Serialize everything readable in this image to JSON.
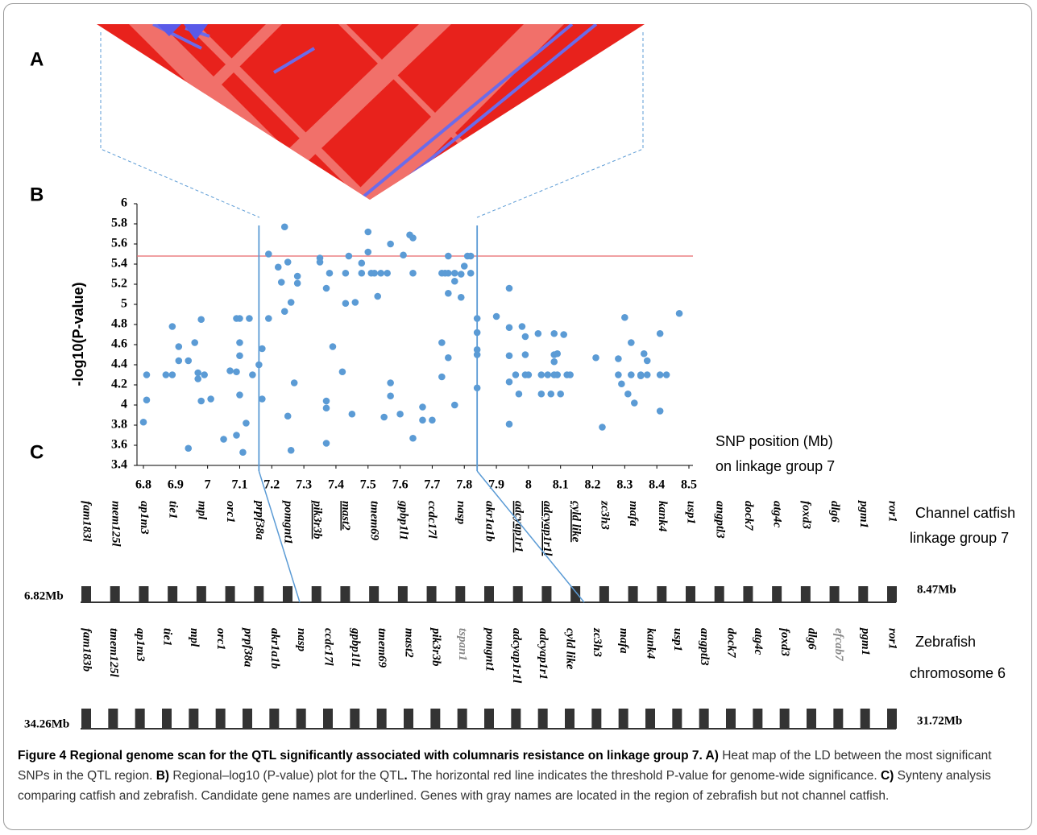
{
  "panel_labels": [
    "A",
    "B",
    "C"
  ],
  "chart_data": {
    "type": "scatter",
    "y_label": "-log10(P-value)",
    "x_label": [
      "SNP position (Mb)",
      "on  linkage group 7"
    ],
    "color": "#5b9bd5",
    "threshold": 5.48,
    "threshold_color": "#e8686a",
    "region_bounds": [
      7.16,
      7.84
    ],
    "region_color": "#5b9bd5",
    "xlim": [
      6.8,
      8.5
    ],
    "ylim": [
      3.4,
      6
    ],
    "xticks": [
      6.8,
      6.9,
      7,
      7.1,
      7.2,
      7.3,
      7.4,
      7.5,
      7.6,
      7.7,
      7.8,
      7.9,
      8,
      8.1,
      8.2,
      8.3,
      8.4,
      8.5
    ],
    "yticks": [
      3.4,
      3.6,
      3.8,
      4,
      4.2,
      4.4,
      4.6,
      4.8,
      5,
      5.2,
      5.4,
      5.6,
      5.8,
      6
    ],
    "x": [
      6.81,
      6.81,
      6.8,
      6.87,
      6.89,
      6.89,
      6.91,
      6.91,
      6.94,
      6.94,
      6.96,
      6.97,
      6.97,
      6.98,
      6.98,
      6.99,
      7.01,
      7.05,
      7.07,
      7.09,
      7.09,
      7.09,
      7.1,
      7.1,
      7.1,
      7.1,
      7.11,
      7.12,
      7.13,
      7.14,
      7.16,
      7.17,
      7.17,
      7.19,
      7.19,
      7.22,
      7.24,
      7.23,
      7.24,
      7.25,
      7.25,
      7.26,
      7.26,
      7.27,
      7.28,
      7.28,
      7.35,
      7.35,
      7.37,
      7.37,
      7.37,
      7.37,
      7.38,
      7.39,
      7.42,
      7.43,
      7.43,
      7.44,
      7.45,
      7.46,
      7.48,
      7.48,
      7.5,
      7.5,
      7.51,
      7.52,
      7.53,
      7.54,
      7.55,
      7.56,
      7.57,
      7.57,
      7.57,
      7.6,
      7.61,
      7.63,
      7.64,
      7.64,
      7.64,
      7.67,
      7.67,
      7.7,
      7.73,
      7.73,
      7.73,
      7.74,
      7.75,
      7.75,
      7.75,
      7.75,
      7.77,
      7.77,
      7.77,
      7.79,
      7.79,
      7.8,
      7.81,
      7.82,
      7.82,
      7.84,
      7.84,
      7.84,
      7.84,
      7.84,
      7.9,
      7.94,
      7.94,
      7.94,
      7.94,
      7.94,
      7.96,
      7.97,
      7.98,
      7.99,
      7.99,
      7.99,
      8.0,
      8.03,
      8.04,
      8.04,
      8.06,
      8.07,
      8.08,
      8.08,
      8.08,
      8.08,
      8.09,
      8.09,
      8.1,
      8.11,
      8.12,
      8.13,
      8.21,
      8.23,
      8.28,
      8.28,
      8.29,
      8.3,
      8.31,
      8.32,
      8.32,
      8.33,
      8.35,
      8.35,
      8.36,
      8.37,
      8.37,
      8.41,
      8.41,
      8.41,
      8.43,
      8.47
    ],
    "values": [
      4.3,
      4.05,
      3.83,
      4.3,
      4.3,
      4.78,
      4.58,
      4.44,
      4.44,
      3.57,
      4.62,
      4.26,
      4.32,
      4.85,
      4.04,
      4.3,
      4.06,
      3.66,
      4.34,
      4.86,
      4.33,
      3.7,
      4.86,
      4.62,
      4.49,
      4.1,
      3.53,
      3.82,
      4.86,
      4.3,
      4.4,
      4.56,
      4.06,
      4.86,
      5.5,
      5.37,
      5.77,
      5.22,
      4.93,
      3.89,
      5.42,
      5.02,
      3.55,
      4.22,
      5.28,
      5.21,
      5.46,
      5.42,
      5.16,
      3.97,
      4.04,
      3.62,
      5.31,
      4.58,
      4.33,
      5.01,
      5.31,
      5.48,
      3.91,
      5.02,
      5.41,
      5.31,
      5.52,
      5.72,
      5.31,
      5.31,
      5.08,
      5.31,
      3.88,
      5.31,
      4.09,
      5.6,
      4.22,
      3.91,
      5.49,
      5.69,
      5.66,
      5.31,
      3.67,
      3.98,
      3.85,
      3.85,
      4.62,
      4.28,
      5.31,
      5.31,
      5.31,
      5.48,
      5.11,
      4.47,
      5.31,
      4.0,
      5.23,
      5.3,
      5.07,
      5.38,
      5.48,
      5.48,
      5.31,
      4.86,
      4.72,
      4.5,
      4.17,
      4.55,
      4.88,
      5.16,
      4.77,
      4.49,
      4.23,
      3.81,
      4.3,
      4.11,
      4.78,
      4.68,
      4.5,
      4.3,
      4.3,
      4.71,
      4.3,
      4.11,
      4.3,
      4.11,
      4.71,
      4.5,
      4.43,
      4.3,
      4.51,
      4.3,
      4.11,
      4.7,
      4.3,
      4.3,
      4.47,
      3.78,
      4.46,
      4.3,
      4.21,
      4.87,
      4.11,
      4.62,
      4.3,
      4.02,
      4.3,
      4.29,
      4.51,
      4.3,
      4.44,
      4.71,
      3.94,
      4.3,
      4.3,
      4.91
    ]
  },
  "synteny": {
    "catfish": {
      "label": [
        "Channel catfish",
        "linkage group 7"
      ],
      "start": "6.82Mb",
      "end": "8.47Mb",
      "genes": [
        {
          "name": "fam183l"
        },
        {
          "name": "mem125l"
        },
        {
          "name": "ap1m3"
        },
        {
          "name": "tie1"
        },
        {
          "name": "mpl"
        },
        {
          "name": "orc1"
        },
        {
          "name": "prpf38a"
        },
        {
          "name": "pomgnt1"
        },
        {
          "name": "pik3r3b",
          "candidate": true
        },
        {
          "name": "mast2",
          "candidate": true
        },
        {
          "name": "tmem69"
        },
        {
          "name": "gpbp1l1"
        },
        {
          "name": "ccdc17l"
        },
        {
          "name": "nasp"
        },
        {
          "name": "akr1a1b"
        },
        {
          "name": "adcyap1r1",
          "candidate": true
        },
        {
          "name": "adcyap1r1l",
          "candidate": true
        },
        {
          "name": "cyld like",
          "candidate": true
        },
        {
          "name": "zc3h3"
        },
        {
          "name": "mafa"
        },
        {
          "name": "kank4"
        },
        {
          "name": "usp1"
        },
        {
          "name": "angptl3"
        },
        {
          "name": "dock7"
        },
        {
          "name": "atg4c"
        },
        {
          "name": "foxd3"
        },
        {
          "name": "dlg6"
        },
        {
          "name": "pgm1"
        },
        {
          "name": "ror1"
        }
      ]
    },
    "zebrafish": {
      "label": [
        "Zebrafish",
        "chromosome 6"
      ],
      "start": "34.26Mb",
      "end": "31.72Mb",
      "genes": [
        {
          "name": "fam183b"
        },
        {
          "name": "tmem125l"
        },
        {
          "name": "ap1m3"
        },
        {
          "name": "tie1"
        },
        {
          "name": "mpl"
        },
        {
          "name": "orc1"
        },
        {
          "name": "prpf38a"
        },
        {
          "name": "akr1a1b"
        },
        {
          "name": "nasp"
        },
        {
          "name": "ccdc17l"
        },
        {
          "name": "gpbp1l1"
        },
        {
          "name": "tmem69"
        },
        {
          "name": "mast2"
        },
        {
          "name": "pik3r3b"
        },
        {
          "name": "tspan1",
          "gray": true
        },
        {
          "name": "pomgnt1"
        },
        {
          "name": "adcyap1r1l"
        },
        {
          "name": "adcyap1r1"
        },
        {
          "name": "cyld like"
        },
        {
          "name": "zc3h3"
        },
        {
          "name": "mafa"
        },
        {
          "name": "kank4"
        },
        {
          "name": "usp1"
        },
        {
          "name": "angptl3"
        },
        {
          "name": "dock7"
        },
        {
          "name": "atg4c"
        },
        {
          "name": "foxd3"
        },
        {
          "name": "dlg6"
        },
        {
          "name": "efcab7",
          "gray": true
        },
        {
          "name": "pgm1"
        },
        {
          "name": "ror1"
        }
      ]
    }
  },
  "caption": [
    {
      "text": "Figure 4 Regional genome scan for the QTL significantly associated with columnaris resistance on linkage group 7. A)",
      "bold": true
    },
    {
      "text": " Heat map of the LD between the most significant SNPs in the QTL region. "
    },
    {
      "text": "B)",
      "bold": true
    },
    {
      "text": " Regional–log10 (P-value) plot for the QTL"
    },
    {
      "text": ".",
      "bold": true
    },
    {
      "text": " The horizontal red line indicates the threshold P-value for genome-wide significance. "
    },
    {
      "text": "C)",
      "bold": true
    },
    {
      "text": " Synteny analysis comparing catfish and zebrafish. Candidate gene names are underlined. Genes with gray names are located in the region of zebrafish but not channel catfish."
    }
  ]
}
